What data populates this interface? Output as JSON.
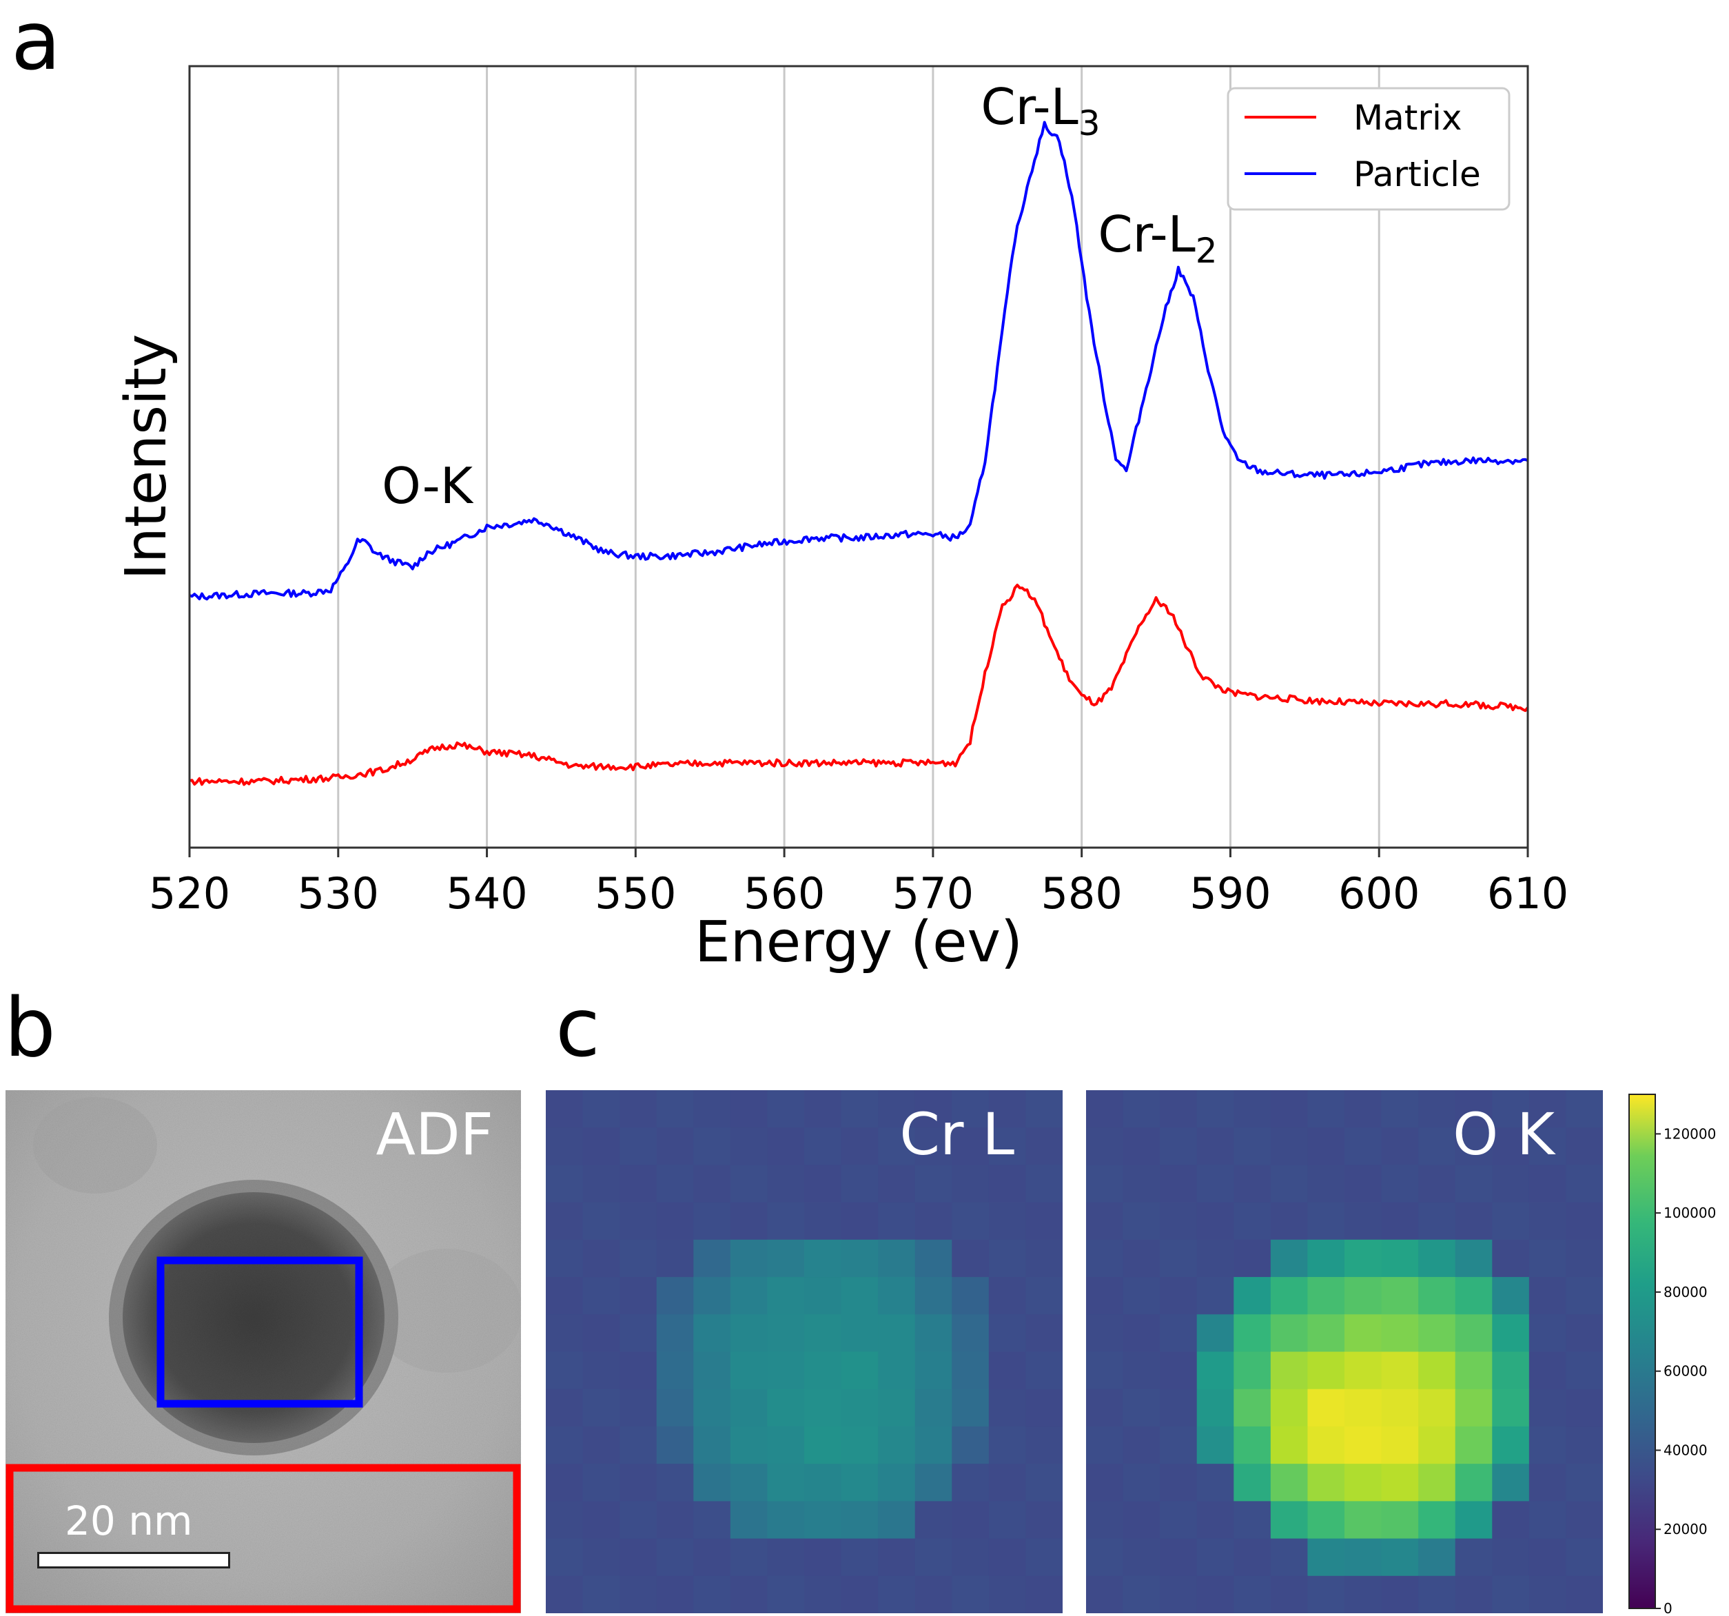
{
  "panels": {
    "a": "a",
    "b": "b",
    "c": "c"
  },
  "chart_data": [
    {
      "type": "line",
      "xlabel": "Energy (ev)",
      "ylabel": "Intensity",
      "xlim": [
        520,
        610
      ],
      "x_ticks": [
        "520",
        "530",
        "540",
        "550",
        "560",
        "570",
        "580",
        "590",
        "600",
        "610"
      ],
      "y_ticks_shown": false,
      "grid": "vertical",
      "legend": {
        "placement": "top-right",
        "entries": [
          "Matrix",
          "Particle"
        ]
      },
      "annotations": [
        {
          "text": "O-K",
          "x": 535
        },
        {
          "text": "Cr-L",
          "sub": "3",
          "x": 577
        },
        {
          "text": "Cr-L",
          "sub": "2",
          "x": 585
        }
      ],
      "series": [
        {
          "name": "Particle",
          "color": "#0000ff",
          "x": [
            520,
            525,
            528,
            529.5,
            530.5,
            531.3,
            531.8,
            532.5,
            533.5,
            535,
            536,
            538,
            540,
            542,
            543,
            544,
            546,
            548,
            550,
            552,
            555,
            558,
            560,
            562,
            565,
            568,
            570,
            571.5,
            572.5,
            573.5,
            574.5,
            575.5,
            576.5,
            577.5,
            578.5,
            579.5,
            580.5,
            581.5,
            582.3,
            583,
            584,
            585.5,
            586.5,
            587.5,
            588.5,
            589.5,
            590.5,
            592,
            595,
            598,
            600,
            603,
            606,
            608,
            610
          ],
          "y": [
            0.68,
            0.69,
            0.69,
            0.7,
            0.76,
            0.83,
            0.83,
            0.8,
            0.78,
            0.76,
            0.8,
            0.83,
            0.87,
            0.88,
            0.89,
            0.88,
            0.84,
            0.8,
            0.79,
            0.79,
            0.8,
            0.82,
            0.83,
            0.84,
            0.84,
            0.85,
            0.85,
            0.84,
            0.87,
            1.05,
            1.35,
            1.65,
            1.82,
            1.96,
            1.92,
            1.73,
            1.45,
            1.22,
            1.06,
            1.02,
            1.19,
            1.44,
            1.57,
            1.49,
            1.3,
            1.13,
            1.05,
            1.02,
            1.01,
            1.01,
            1.02,
            1.04,
            1.05,
            1.05,
            1.05
          ]
        },
        {
          "name": "Matrix",
          "color": "#ff0000",
          "x": [
            520,
            525,
            530,
            533,
            535,
            536.5,
            538,
            540,
            543,
            546,
            550,
            555,
            560,
            565,
            570,
            571.5,
            572.5,
            573.5,
            574.5,
            575.5,
            576,
            577,
            578,
            579,
            580,
            581,
            582,
            583,
            584,
            585,
            586,
            587,
            588,
            589,
            590,
            592,
            595,
            600,
            605,
            610
          ],
          "y": [
            0.18,
            0.18,
            0.19,
            0.21,
            0.24,
            0.27,
            0.28,
            0.26,
            0.25,
            0.22,
            0.22,
            0.23,
            0.23,
            0.23,
            0.23,
            0.23,
            0.29,
            0.47,
            0.64,
            0.7,
            0.71,
            0.66,
            0.56,
            0.47,
            0.41,
            0.39,
            0.43,
            0.52,
            0.61,
            0.67,
            0.64,
            0.55,
            0.47,
            0.44,
            0.42,
            0.41,
            0.4,
            0.39,
            0.39,
            0.38
          ]
        }
      ]
    },
    {
      "type": "heatmap",
      "title": "Cr L",
      "rows": 14,
      "cols": 14,
      "values": [
        [
          30,
          30,
          30,
          30,
          30,
          30,
          30,
          30,
          30,
          30,
          30,
          30,
          30,
          30
        ],
        [
          30,
          30,
          30,
          30,
          30,
          30,
          30,
          30,
          30,
          30,
          30,
          30,
          30,
          30
        ],
        [
          30,
          30,
          30,
          30,
          30,
          30,
          30,
          30,
          30,
          30,
          30,
          30,
          30,
          30
        ],
        [
          30,
          30,
          30,
          30,
          30,
          30,
          30,
          30,
          30,
          30,
          30,
          30,
          30,
          30
        ],
        [
          30,
          30,
          30,
          30,
          45,
          52,
          55,
          57,
          57,
          55,
          45,
          30,
          30,
          30
        ],
        [
          30,
          30,
          30,
          40,
          50,
          58,
          60,
          60,
          60,
          58,
          50,
          40,
          30,
          30
        ],
        [
          30,
          30,
          30,
          45,
          55,
          60,
          62,
          62,
          62,
          60,
          55,
          45,
          30,
          30
        ],
        [
          30,
          30,
          30,
          45,
          55,
          60,
          62,
          65,
          65,
          62,
          55,
          45,
          30,
          30
        ],
        [
          30,
          30,
          30,
          45,
          55,
          60,
          62,
          65,
          65,
          62,
          55,
          45,
          30,
          30
        ],
        [
          30,
          30,
          30,
          40,
          55,
          60,
          62,
          65,
          65,
          62,
          55,
          40,
          30,
          30
        ],
        [
          30,
          30,
          30,
          30,
          50,
          55,
          60,
          60,
          60,
          58,
          50,
          30,
          30,
          30
        ],
        [
          30,
          30,
          30,
          30,
          30,
          50,
          55,
          55,
          55,
          50,
          30,
          30,
          30,
          30
        ],
        [
          30,
          30,
          30,
          30,
          30,
          30,
          30,
          30,
          30,
          30,
          30,
          30,
          30,
          30
        ],
        [
          30,
          30,
          30,
          30,
          30,
          30,
          30,
          30,
          30,
          30,
          30,
          30,
          30,
          30
        ]
      ]
    },
    {
      "type": "heatmap",
      "title": "O K",
      "rows": 14,
      "cols": 14,
      "values": [
        [
          30,
          30,
          30,
          30,
          30,
          30,
          30,
          30,
          30,
          30,
          30,
          30,
          30,
          30
        ],
        [
          30,
          30,
          30,
          30,
          30,
          30,
          30,
          30,
          30,
          30,
          30,
          30,
          30,
          30
        ],
        [
          30,
          30,
          30,
          30,
          30,
          30,
          30,
          30,
          30,
          30,
          30,
          30,
          30,
          30
        ],
        [
          30,
          30,
          30,
          30,
          30,
          30,
          30,
          30,
          30,
          30,
          30,
          30,
          30,
          30
        ],
        [
          30,
          30,
          30,
          30,
          30,
          60,
          70,
          75,
          75,
          70,
          60,
          30,
          30,
          30
        ],
        [
          30,
          30,
          30,
          30,
          70,
          85,
          90,
          95,
          95,
          90,
          85,
          60,
          30,
          30
        ],
        [
          30,
          30,
          30,
          60,
          85,
          95,
          100,
          105,
          105,
          100,
          95,
          75,
          30,
          30
        ],
        [
          30,
          30,
          30,
          70,
          90,
          110,
          115,
          120,
          120,
          115,
          100,
          80,
          30,
          30
        ],
        [
          30,
          30,
          30,
          70,
          95,
          115,
          125,
          125,
          125,
          120,
          105,
          80,
          30,
          30
        ],
        [
          30,
          30,
          30,
          65,
          90,
          115,
          125,
          125,
          125,
          120,
          100,
          75,
          30,
          30
        ],
        [
          30,
          30,
          30,
          30,
          80,
          100,
          110,
          115,
          115,
          110,
          90,
          60,
          30,
          30
        ],
        [
          30,
          30,
          30,
          30,
          30,
          80,
          90,
          95,
          95,
          85,
          70,
          30,
          30,
          30
        ],
        [
          30,
          30,
          30,
          30,
          30,
          30,
          60,
          60,
          60,
          55,
          30,
          30,
          30,
          30
        ],
        [
          30,
          30,
          30,
          30,
          30,
          30,
          30,
          30,
          30,
          30,
          30,
          30,
          30,
          30
        ]
      ]
    }
  ],
  "colorbar": {
    "ticks": [
      "0",
      "20000",
      "40000",
      "60000",
      "80000",
      "100000",
      "120000"
    ],
    "range": [
      0,
      130000
    ],
    "colormap": "viridis"
  },
  "stem": {
    "label": "ADF",
    "scale_label": "20 nm",
    "box_colors": [
      "#0000ff",
      "#ff0000"
    ]
  }
}
